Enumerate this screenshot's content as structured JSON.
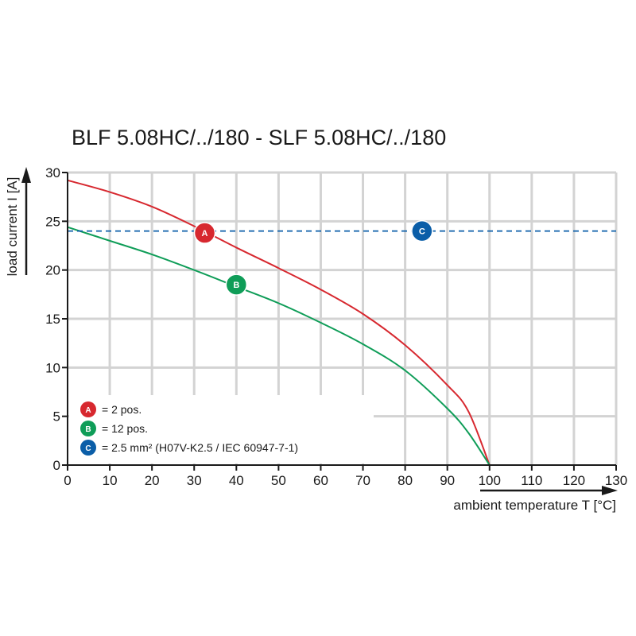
{
  "chart_data": {
    "type": "line",
    "title": "BLF 5.08HC/../180 - SLF 5.08HC/../180",
    "xlabel": "ambient temperature T [°C]",
    "ylabel": "load current I [A]",
    "xlim": [
      0,
      130
    ],
    "ylim": [
      0,
      30
    ],
    "x_ticks": [
      0,
      10,
      20,
      30,
      40,
      50,
      60,
      70,
      80,
      90,
      100,
      110,
      120,
      130
    ],
    "y_ticks": [
      0,
      5,
      10,
      15,
      20,
      25,
      30
    ],
    "grid": true,
    "series": [
      {
        "marker": "A",
        "color": "#d7282f",
        "points": [
          [
            0,
            29.2
          ],
          [
            10,
            28.0
          ],
          [
            20,
            26.5
          ],
          [
            30,
            24.5
          ],
          [
            40,
            22.3
          ],
          [
            50,
            20.2
          ],
          [
            60,
            18.0
          ],
          [
            70,
            15.5
          ],
          [
            80,
            12.3
          ],
          [
            90,
            8.2
          ],
          [
            95,
            5.5
          ],
          [
            100,
            0
          ]
        ]
      },
      {
        "marker": "B",
        "color": "#0f9d58",
        "points": [
          [
            0,
            24.4
          ],
          [
            10,
            23.0
          ],
          [
            20,
            21.6
          ],
          [
            30,
            20.0
          ],
          [
            40,
            18.3
          ],
          [
            50,
            16.6
          ],
          [
            60,
            14.6
          ],
          [
            70,
            12.4
          ],
          [
            80,
            9.7
          ],
          [
            90,
            5.8
          ],
          [
            95,
            3.3
          ],
          [
            100,
            0
          ]
        ]
      },
      {
        "marker": "C",
        "color": "#0b5ea8",
        "style": "dashed",
        "points": [
          [
            0,
            24
          ],
          [
            130,
            24
          ]
        ]
      }
    ],
    "markers_on_chart": [
      {
        "label": "A",
        "x": 32.5,
        "y": 23.8,
        "color": "#d7282f"
      },
      {
        "label": "B",
        "x": 40,
        "y": 18.5,
        "color": "#0f9d58"
      },
      {
        "label": "C",
        "x": 84,
        "y": 24,
        "color": "#0b5ea8"
      }
    ],
    "legend": {
      "placement": "bottom-left",
      "entries": [
        {
          "label": "A",
          "text": "= 2 pos.",
          "color": "#d7282f"
        },
        {
          "label": "B",
          "text": "= 12 pos.",
          "color": "#0f9d58"
        },
        {
          "label": "C",
          "text": "= 2.5 mm² (H07V-K2.5 / IEC 60947-7-1)",
          "color": "#0b5ea8"
        }
      ]
    }
  }
}
